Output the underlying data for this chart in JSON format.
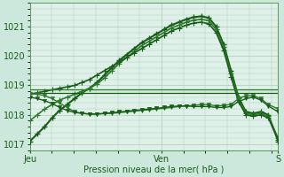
{
  "background_color": "#cce8dc",
  "plot_bg_color": "#dff0e8",
  "grid_color": "#aacaba",
  "line_color_dark": "#1a5c1a",
  "line_color_mid": "#2d7a2d",
  "xlabel": "Pression niveau de la mer( hPa )",
  "ylim": [
    1016.8,
    1021.8
  ],
  "yticks": [
    1017,
    1018,
    1019,
    1020,
    1021
  ],
  "xtick_labels": [
    "Jeu",
    "Ven",
    "S"
  ],
  "xtick_positions": [
    0.0,
    0.53,
    1.0
  ],
  "series": [
    {
      "x": [
        0.0,
        0.03,
        0.06,
        0.09,
        0.12,
        0.15,
        0.18,
        0.21,
        0.24,
        0.27,
        0.3,
        0.33,
        0.36,
        0.39,
        0.42,
        0.45,
        0.48,
        0.51,
        0.54,
        0.57,
        0.6,
        0.63,
        0.66,
        0.69,
        0.72,
        0.75,
        0.78,
        0.81,
        0.84,
        0.87,
        0.9,
        0.93,
        0.96,
        1.0
      ],
      "y": [
        1017.1,
        1017.35,
        1017.6,
        1017.9,
        1018.15,
        1018.35,
        1018.55,
        1018.75,
        1018.9,
        1019.1,
        1019.35,
        1019.6,
        1019.85,
        1020.05,
        1020.25,
        1020.45,
        1020.6,
        1020.75,
        1020.9,
        1021.05,
        1021.15,
        1021.25,
        1021.32,
        1021.35,
        1021.3,
        1021.0,
        1020.4,
        1019.5,
        1018.6,
        1018.1,
        1018.05,
        1018.1,
        1018.0,
        1017.1
      ],
      "color": "#1a5c1a",
      "lw": 1.5,
      "marker": "+",
      "ms": 4,
      "mew": 1.0
    },
    {
      "x": [
        0.0,
        0.03,
        0.06,
        0.09,
        0.12,
        0.15,
        0.18,
        0.21,
        0.24,
        0.27,
        0.3,
        0.33,
        0.36,
        0.39,
        0.42,
        0.45,
        0.48,
        0.51,
        0.54,
        0.57,
        0.6,
        0.63,
        0.66,
        0.69,
        0.72,
        0.75,
        0.78,
        0.81,
        0.84,
        0.87,
        0.9,
        0.93,
        0.96,
        1.0
      ],
      "y": [
        1017.8,
        1018.0,
        1018.2,
        1018.35,
        1018.5,
        1018.6,
        1018.7,
        1018.8,
        1018.9,
        1019.05,
        1019.25,
        1019.5,
        1019.75,
        1019.95,
        1020.15,
        1020.35,
        1020.5,
        1020.65,
        1020.8,
        1020.95,
        1021.05,
        1021.15,
        1021.22,
        1021.25,
        1021.2,
        1020.9,
        1020.3,
        1019.4,
        1018.55,
        1018.05,
        1018.0,
        1018.05,
        1017.95,
        1017.2
      ],
      "color": "#2d7a2d",
      "lw": 1.2,
      "marker": "+",
      "ms": 4,
      "mew": 0.8
    },
    {
      "x": [
        0.0,
        0.03,
        0.06,
        0.09,
        0.12,
        0.15,
        0.18,
        0.21,
        0.24,
        0.27,
        0.3,
        0.33,
        0.36,
        0.39,
        0.42,
        0.45,
        0.48,
        0.51,
        0.54,
        0.57,
        0.6,
        0.63,
        0.66,
        0.69,
        0.72,
        0.75,
        0.78,
        0.81,
        0.84,
        0.87,
        0.9,
        0.93,
        0.96,
        1.0
      ],
      "y": [
        1018.7,
        1018.75,
        1018.8,
        1018.85,
        1018.9,
        1018.95,
        1019.0,
        1019.1,
        1019.2,
        1019.35,
        1019.5,
        1019.65,
        1019.8,
        1019.95,
        1020.1,
        1020.25,
        1020.4,
        1020.55,
        1020.7,
        1020.85,
        1020.95,
        1021.05,
        1021.12,
        1021.15,
        1021.1,
        1020.8,
        1020.2,
        1019.3,
        1018.45,
        1018.0,
        1017.95,
        1018.0,
        1017.9,
        1017.15
      ],
      "color": "#1a5c1a",
      "lw": 1.2,
      "marker": "+",
      "ms": 4,
      "mew": 0.8
    },
    {
      "x": [
        0.0,
        0.1,
        0.2,
        0.3,
        0.4,
        0.5,
        0.6,
        0.7,
        0.8,
        0.9,
        1.0
      ],
      "y": [
        1018.85,
        1018.85,
        1018.85,
        1018.85,
        1018.85,
        1018.85,
        1018.85,
        1018.85,
        1018.85,
        1018.85,
        1018.85
      ],
      "color": "#2d7a2d",
      "lw": 0.9,
      "marker": null,
      "ms": 0,
      "mew": 0
    },
    {
      "x": [
        0.0,
        0.1,
        0.2,
        0.3,
        0.4,
        0.5,
        0.6,
        0.7,
        0.8,
        0.9,
        1.0
      ],
      "y": [
        1018.75,
        1018.75,
        1018.75,
        1018.75,
        1018.75,
        1018.75,
        1018.75,
        1018.75,
        1018.75,
        1018.75,
        1018.75
      ],
      "color": "#1a5c1a",
      "lw": 0.9,
      "marker": null,
      "ms": 0,
      "mew": 0
    },
    {
      "x": [
        0.0,
        0.03,
        0.06,
        0.09,
        0.12,
        0.15,
        0.18,
        0.21,
        0.24,
        0.27,
        0.3,
        0.33,
        0.36,
        0.39,
        0.42,
        0.45,
        0.48,
        0.51,
        0.54,
        0.57,
        0.6,
        0.63,
        0.66,
        0.69,
        0.72,
        0.75,
        0.78,
        0.81,
        0.84,
        0.87,
        0.9,
        0.93,
        0.96,
        1.0
      ],
      "y": [
        1018.72,
        1018.7,
        1018.65,
        1018.55,
        1018.4,
        1018.25,
        1018.1,
        1018.05,
        1018.02,
        1018.02,
        1018.04,
        1018.05,
        1018.07,
        1018.1,
        1018.12,
        1018.15,
        1018.17,
        1018.2,
        1018.22,
        1018.25,
        1018.28,
        1018.3,
        1018.32,
        1018.35,
        1018.35,
        1018.3,
        1018.32,
        1018.35,
        1018.55,
        1018.65,
        1018.65,
        1018.55,
        1018.35,
        1018.2
      ],
      "color": "#2d7a2d",
      "lw": 1.0,
      "marker": "v",
      "ms": 3,
      "mew": 0.5
    },
    {
      "x": [
        0.0,
        0.03,
        0.06,
        0.09,
        0.12,
        0.15,
        0.18,
        0.21,
        0.24,
        0.27,
        0.3,
        0.33,
        0.36,
        0.39,
        0.42,
        0.45,
        0.48,
        0.51,
        0.54,
        0.57,
        0.6,
        0.63,
        0.66,
        0.69,
        0.72,
        0.75,
        0.78,
        0.81,
        0.84,
        0.87,
        0.9,
        0.93,
        0.96,
        1.0
      ],
      "y": [
        1018.6,
        1018.55,
        1018.48,
        1018.38,
        1018.25,
        1018.15,
        1018.08,
        1018.05,
        1018.03,
        1018.03,
        1018.05,
        1018.07,
        1018.1,
        1018.12,
        1018.15,
        1018.17,
        1018.2,
        1018.22,
        1018.25,
        1018.28,
        1018.3,
        1018.3,
        1018.28,
        1018.28,
        1018.28,
        1018.25,
        1018.25,
        1018.28,
        1018.45,
        1018.55,
        1018.6,
        1018.5,
        1018.3,
        1018.1
      ],
      "color": "#1a5c1a",
      "lw": 1.0,
      "marker": "v",
      "ms": 3,
      "mew": 0.5
    }
  ]
}
